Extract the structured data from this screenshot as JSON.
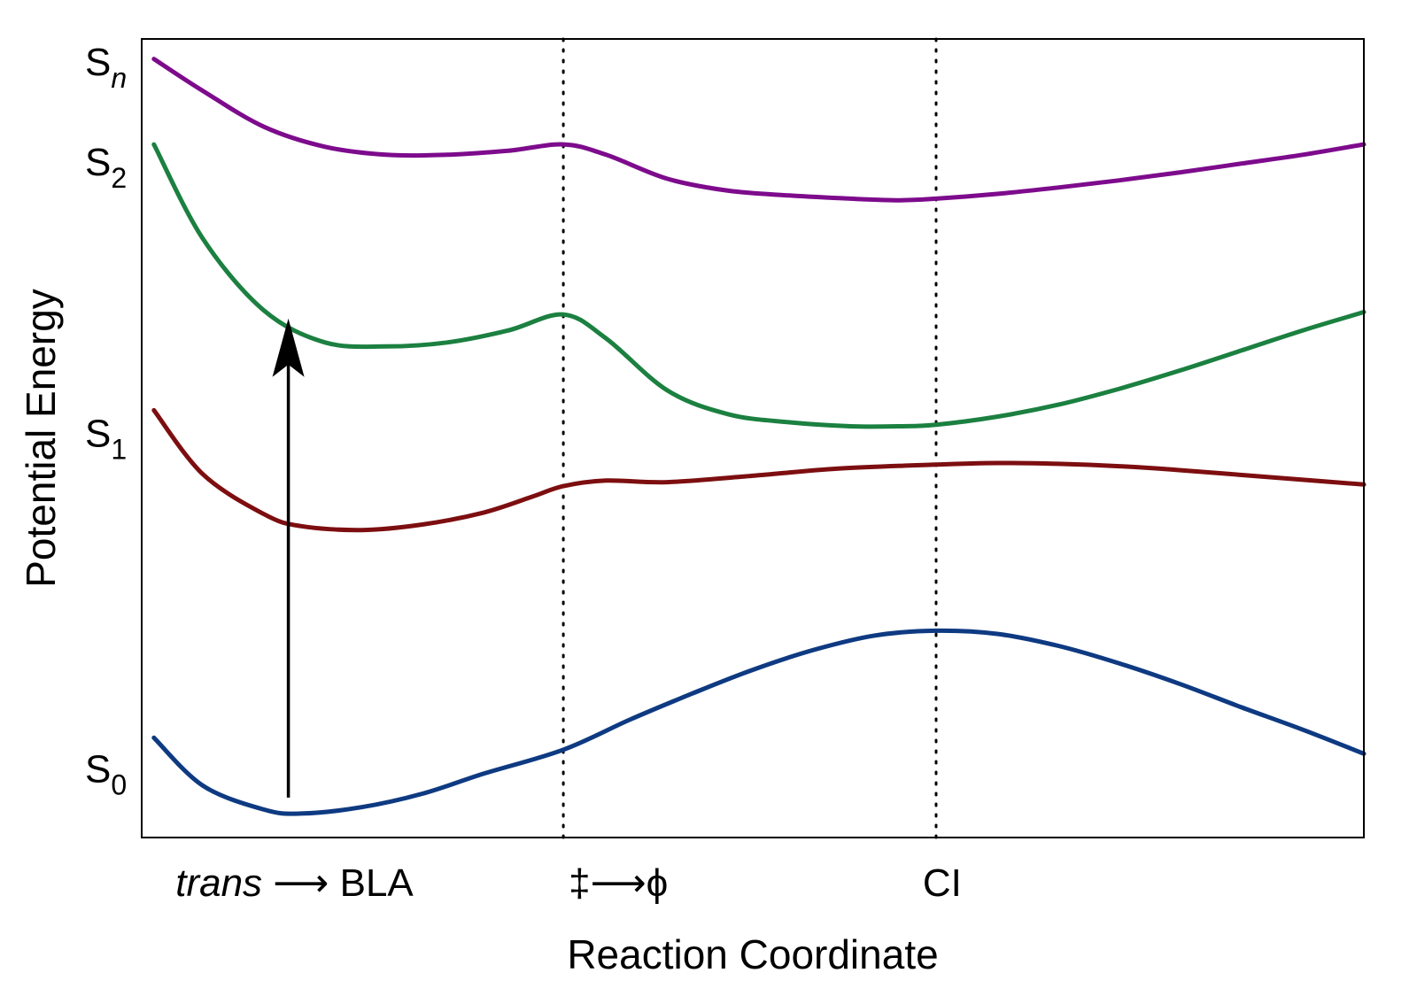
{
  "chart_data": {
    "type": "line",
    "title": "",
    "xlabel": "Reaction Coordinate",
    "ylabel": "Potential Energy",
    "xlim": [
      0,
      100
    ],
    "ylim": [
      0,
      100
    ],
    "grid": false,
    "legend": "none",
    "state_labels": [
      {
        "base": "S",
        "sub": "n",
        "sub_italic": true,
        "y": 97
      },
      {
        "base": "S",
        "sub": "2",
        "sub_italic": false,
        "y": 84.5
      },
      {
        "base": "S",
        "sub": "1",
        "sub_italic": false,
        "y": 50.5
      },
      {
        "base": "S",
        "sub": "0",
        "sub_italic": false,
        "y": 8.5
      }
    ],
    "x_annotations": [
      {
        "label_italic": "trans",
        "label": " ⟶ BLA",
        "x": 12.5
      },
      {
        "label": "‡⟶ϕ",
        "x": 39
      },
      {
        "label": "CI",
        "x": 65.5
      }
    ],
    "vlines": [
      34.5,
      65
    ],
    "arrow": {
      "x": 12,
      "y_start": 5,
      "y_end": 65
    },
    "series": [
      {
        "id": "Sn",
        "color": "#7d0b8c",
        "x": [
          1,
          5,
          10,
          15,
          20,
          25,
          30,
          34.5,
          38,
          43,
          48,
          53,
          58,
          62,
          65,
          70,
          75,
          80,
          85,
          90,
          95,
          100
        ],
        "y": [
          97.5,
          93.5,
          89,
          86.5,
          85.5,
          85.5,
          86,
          86.8,
          85.5,
          82.5,
          81,
          80.4,
          80,
          79.8,
          80,
          80.6,
          81.4,
          82.3,
          83.3,
          84.4,
          85.5,
          86.8
        ]
      },
      {
        "id": "S2",
        "color": "#1b8040",
        "x": [
          1,
          5,
          10,
          15,
          20,
          25,
          30,
          34.5,
          38,
          43,
          48,
          53,
          58,
          62,
          65,
          70,
          75,
          80,
          85,
          90,
          95,
          100
        ],
        "y": [
          86.8,
          75,
          66,
          62,
          61.5,
          62,
          63.5,
          65.5,
          62.5,
          56,
          53,
          52,
          51.5,
          51.5,
          51.7,
          52.7,
          54.2,
          56.2,
          58.5,
          61,
          63.5,
          65.8
        ]
      },
      {
        "id": "S1",
        "color": "#7d0e10",
        "x": [
          1,
          5,
          10,
          13,
          18,
          23,
          28,
          32,
          34.5,
          38,
          43,
          50,
          57,
          65,
          70,
          75,
          80,
          85,
          90,
          95,
          100
        ],
        "y": [
          53.5,
          45.5,
          40.5,
          39,
          38.5,
          39.2,
          40.7,
          42.7,
          44,
          44.7,
          44.5,
          45.3,
          46.2,
          46.7,
          46.9,
          46.8,
          46.5,
          46,
          45.4,
          44.8,
          44.2
        ]
      },
      {
        "id": "S0",
        "color": "#0e3a82",
        "x": [
          1,
          5,
          10,
          13,
          18,
          23,
          28,
          34.5,
          40,
          45,
          50,
          55,
          60,
          65,
          70,
          75,
          80,
          85,
          90,
          95,
          100
        ],
        "y": [
          12.5,
          6.5,
          3.5,
          3,
          3.8,
          5.5,
          8,
          11,
          14.8,
          18,
          21,
          23.5,
          25.3,
          25.9,
          25.5,
          24,
          21.8,
          19.2,
          16.3,
          13.5,
          10.5
        ]
      }
    ]
  }
}
